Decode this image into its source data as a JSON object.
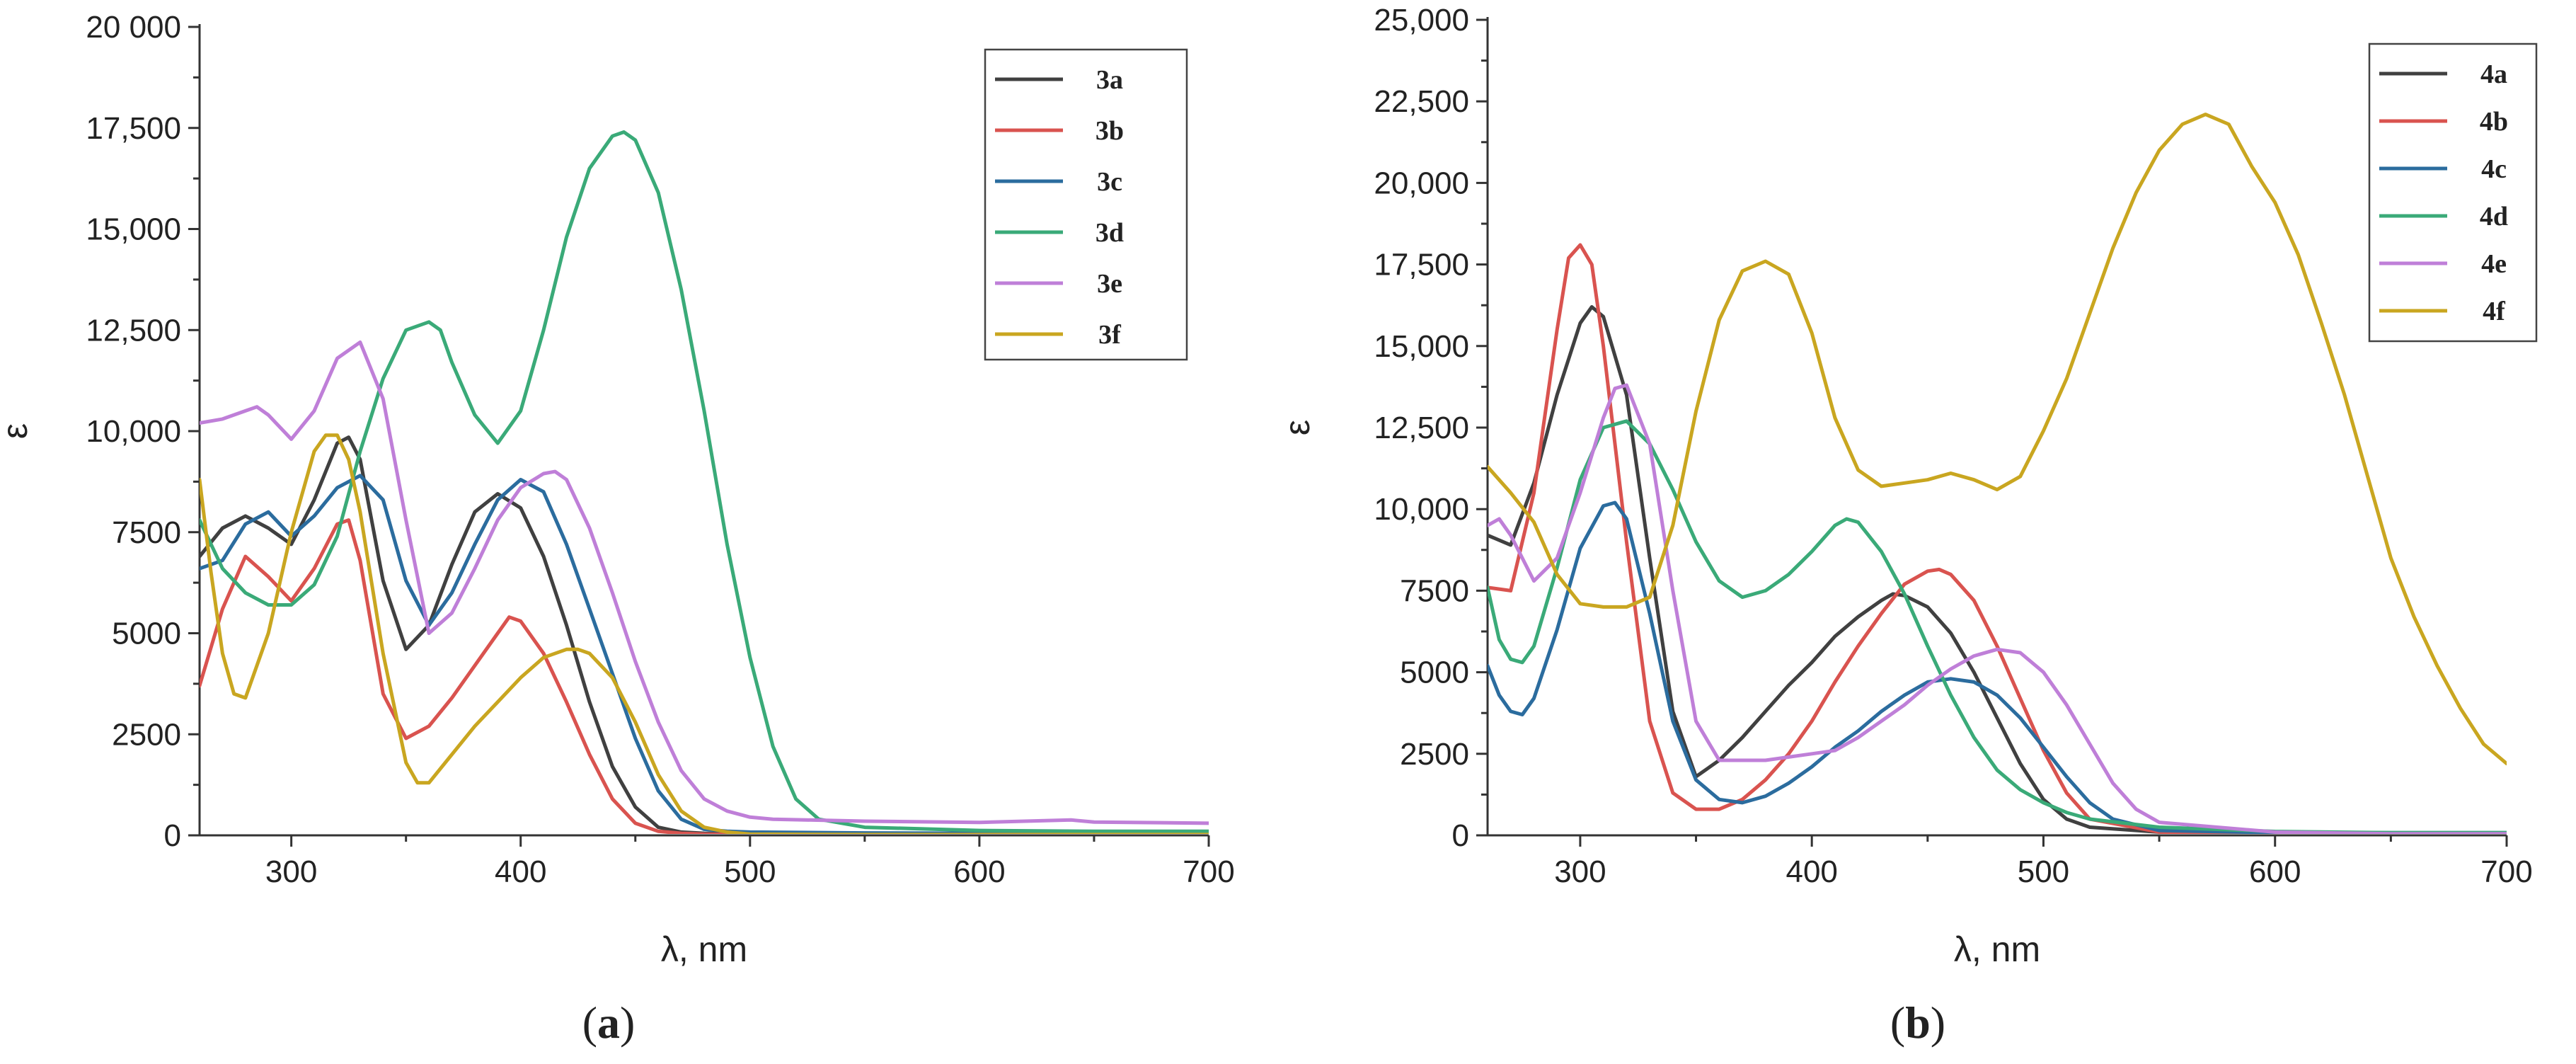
{
  "chart_data": [
    {
      "type": "line",
      "panel_label": "a",
      "xlabel": "λ, nm",
      "ylabel": "ε",
      "xlim": [
        260,
        700
      ],
      "ylim": [
        0,
        20000
      ],
      "xticks": [
        300,
        400,
        500,
        600,
        700
      ],
      "xtick_labels": [
        "300",
        "400",
        "500",
        "600",
        "700"
      ],
      "yticks": [
        0,
        2500,
        5000,
        7500,
        10000,
        12500,
        15000,
        17500,
        20000
      ],
      "ytick_labels": [
        "0",
        "2500",
        "5000",
        "7500",
        "10,000",
        "12,500",
        "15,000",
        "17,500",
        "20 000"
      ],
      "legend": "top-right",
      "grid": false,
      "series": [
        {
          "name": "3a",
          "color": "#404040",
          "x": [
            260,
            270,
            280,
            290,
            300,
            310,
            320,
            325,
            330,
            340,
            350,
            360,
            370,
            380,
            390,
            400,
            410,
            420,
            430,
            440,
            450,
            460,
            470,
            480,
            500,
            550,
            600,
            650,
            700
          ],
          "y": [
            6900,
            7600,
            7900,
            7600,
            7200,
            8300,
            9700,
            9850,
            9300,
            6300,
            4600,
            5200,
            6700,
            8000,
            8450,
            8100,
            6900,
            5200,
            3300,
            1700,
            700,
            200,
            80,
            50,
            30,
            30,
            30,
            30,
            30
          ]
        },
        {
          "name": "3b",
          "color": "#d9534f",
          "x": [
            260,
            270,
            280,
            290,
            300,
            310,
            320,
            325,
            330,
            340,
            350,
            360,
            370,
            380,
            390,
            395,
            400,
            410,
            420,
            430,
            440,
            450,
            460,
            470,
            480,
            500,
            550,
            600,
            650,
            700
          ],
          "y": [
            3700,
            5600,
            6900,
            6400,
            5800,
            6600,
            7700,
            7800,
            6800,
            3500,
            2400,
            2700,
            3400,
            4200,
            5000,
            5400,
            5300,
            4500,
            3300,
            2000,
            900,
            300,
            100,
            50,
            30,
            20,
            20,
            20,
            20,
            20
          ]
        },
        {
          "name": "3c",
          "color": "#2b6c9e",
          "x": [
            260,
            270,
            280,
            290,
            300,
            310,
            320,
            330,
            340,
            350,
            360,
            370,
            380,
            390,
            400,
            410,
            420,
            430,
            440,
            450,
            460,
            470,
            480,
            490,
            500,
            550,
            600,
            650,
            700
          ],
          "y": [
            6600,
            6800,
            7700,
            8000,
            7400,
            7900,
            8600,
            8900,
            8300,
            6300,
            5200,
            6000,
            7200,
            8300,
            8800,
            8500,
            7200,
            5600,
            4000,
            2400,
            1100,
            400,
            150,
            100,
            80,
            60,
            50,
            50,
            60
          ]
        },
        {
          "name": "3d",
          "color": "#3aaa78",
          "x": [
            260,
            270,
            280,
            290,
            300,
            310,
            320,
            330,
            340,
            350,
            360,
            365,
            370,
            380,
            390,
            400,
            410,
            420,
            430,
            440,
            445,
            450,
            460,
            470,
            480,
            490,
            500,
            510,
            520,
            530,
            550,
            600,
            650,
            700
          ],
          "y": [
            7800,
            6600,
            6000,
            5700,
            5700,
            6200,
            7400,
            9500,
            11300,
            12500,
            12700,
            12500,
            11700,
            10400,
            9700,
            10500,
            12500,
            14800,
            16500,
            17300,
            17400,
            17200,
            15900,
            13500,
            10500,
            7200,
            4400,
            2200,
            900,
            400,
            200,
            120,
            100,
            100
          ]
        },
        {
          "name": "3e",
          "color": "#bf7fd8",
          "x": [
            260,
            270,
            280,
            285,
            290,
            300,
            310,
            320,
            330,
            340,
            350,
            360,
            370,
            380,
            390,
            400,
            410,
            415,
            420,
            430,
            440,
            450,
            460,
            470,
            480,
            490,
            500,
            510,
            550,
            600,
            640,
            650,
            700
          ],
          "y": [
            10200,
            10300,
            10500,
            10600,
            10400,
            9800,
            10500,
            11800,
            12200,
            10800,
            7800,
            5000,
            5500,
            6600,
            7800,
            8600,
            8950,
            9000,
            8800,
            7600,
            6000,
            4300,
            2800,
            1600,
            900,
            600,
            450,
            400,
            350,
            320,
            380,
            330,
            300
          ]
        },
        {
          "name": "3f",
          "color": "#c9a620",
          "x": [
            260,
            265,
            270,
            275,
            280,
            290,
            300,
            310,
            315,
            320,
            325,
            330,
            340,
            350,
            355,
            360,
            370,
            380,
            390,
            400,
            410,
            420,
            425,
            430,
            440,
            450,
            460,
            470,
            480,
            490,
            500,
            550,
            600,
            650,
            700
          ],
          "y": [
            8800,
            6500,
            4500,
            3500,
            3400,
            5000,
            7500,
            9500,
            9900,
            9900,
            9300,
            8000,
            4500,
            1800,
            1300,
            1300,
            2000,
            2700,
            3300,
            3900,
            4400,
            4600,
            4600,
            4500,
            3900,
            2800,
            1500,
            600,
            200,
            80,
            30,
            20,
            20,
            20,
            20
          ]
        }
      ]
    },
    {
      "type": "line",
      "panel_label": "b",
      "xlabel": "λ, nm",
      "ylabel": "ε",
      "xlim": [
        260,
        700
      ],
      "ylim": [
        0,
        25000
      ],
      "xticks": [
        300,
        400,
        500,
        600,
        700
      ],
      "xtick_labels": [
        "300",
        "400",
        "500",
        "600",
        "700"
      ],
      "yticks": [
        0,
        2500,
        5000,
        7500,
        10000,
        12500,
        15000,
        17500,
        20000,
        22500,
        25000
      ],
      "ytick_labels": [
        "0",
        "2500",
        "5000",
        "7500",
        "10,000",
        "12,500",
        "15,000",
        "17,500",
        "20,000",
        "22,500",
        "25,000"
      ],
      "legend": "top-right",
      "grid": false,
      "series": [
        {
          "name": "4a",
          "color": "#404040",
          "x": [
            260,
            270,
            280,
            290,
            300,
            305,
            310,
            320,
            330,
            340,
            350,
            360,
            370,
            380,
            390,
            400,
            410,
            420,
            430,
            435,
            440,
            450,
            460,
            470,
            480,
            490,
            500,
            510,
            520,
            550,
            600,
            650,
            700
          ],
          "y": [
            9200,
            8900,
            10800,
            13500,
            15700,
            16200,
            15900,
            13500,
            8500,
            3800,
            1800,
            2300,
            3000,
            3800,
            4600,
            5300,
            6100,
            6700,
            7200,
            7400,
            7350,
            7000,
            6200,
            5000,
            3600,
            2200,
            1100,
            500,
            250,
            100,
            50,
            40,
            40
          ]
        },
        {
          "name": "4b",
          "color": "#d9534f",
          "x": [
            260,
            270,
            280,
            290,
            295,
            300,
            305,
            310,
            320,
            330,
            340,
            350,
            360,
            370,
            380,
            390,
            400,
            410,
            420,
            430,
            440,
            450,
            455,
            460,
            470,
            480,
            490,
            500,
            510,
            520,
            550,
            600,
            650,
            700
          ],
          "y": [
            7600,
            7500,
            10500,
            15500,
            17700,
            18100,
            17500,
            15000,
            9000,
            3500,
            1300,
            800,
            800,
            1100,
            1700,
            2500,
            3500,
            4700,
            5800,
            6800,
            7700,
            8100,
            8150,
            8000,
            7200,
            5800,
            4200,
            2600,
            1300,
            500,
            100,
            50,
            40,
            40
          ]
        },
        {
          "name": "4c",
          "color": "#2b6c9e",
          "x": [
            260,
            265,
            270,
            275,
            280,
            290,
            300,
            310,
            315,
            320,
            330,
            340,
            350,
            360,
            370,
            380,
            390,
            400,
            410,
            420,
            430,
            440,
            450,
            460,
            470,
            480,
            490,
            500,
            510,
            520,
            530,
            550,
            600,
            650,
            700
          ],
          "y": [
            5200,
            4300,
            3800,
            3700,
            4200,
            6300,
            8800,
            10100,
            10200,
            9700,
            6800,
            3500,
            1700,
            1100,
            1000,
            1200,
            1600,
            2100,
            2700,
            3200,
            3800,
            4300,
            4700,
            4800,
            4700,
            4300,
            3600,
            2700,
            1800,
            1000,
            500,
            150,
            80,
            80,
            80
          ]
        },
        {
          "name": "4d",
          "color": "#3aaa78",
          "x": [
            260,
            265,
            270,
            275,
            280,
            290,
            300,
            310,
            320,
            330,
            340,
            350,
            360,
            370,
            380,
            390,
            400,
            410,
            415,
            420,
            430,
            440,
            450,
            460,
            470,
            480,
            490,
            500,
            510,
            520,
            550,
            600,
            650,
            700
          ],
          "y": [
            7600,
            6000,
            5400,
            5300,
            5800,
            8200,
            10900,
            12500,
            12700,
            12000,
            10600,
            9000,
            7800,
            7300,
            7500,
            8000,
            8700,
            9500,
            9700,
            9600,
            8700,
            7400,
            5800,
            4300,
            3000,
            2000,
            1400,
            1000,
            700,
            500,
            250,
            120,
            80,
            80
          ]
        },
        {
          "name": "4e",
          "color": "#bf7fd8",
          "x": [
            260,
            265,
            270,
            280,
            290,
            300,
            310,
            315,
            320,
            330,
            340,
            350,
            360,
            370,
            380,
            390,
            400,
            410,
            420,
            430,
            440,
            450,
            460,
            470,
            480,
            490,
            500,
            510,
            520,
            530,
            540,
            550,
            600,
            650,
            700
          ],
          "y": [
            9500,
            9700,
            9200,
            7800,
            8500,
            10500,
            12800,
            13700,
            13800,
            12000,
            7500,
            3500,
            2300,
            2300,
            2300,
            2400,
            2500,
            2600,
            3000,
            3500,
            4000,
            4600,
            5100,
            5500,
            5700,
            5600,
            5000,
            4000,
            2800,
            1600,
            800,
            400,
            100,
            50,
            50
          ]
        },
        {
          "name": "4f",
          "color": "#c9a620",
          "x": [
            260,
            270,
            280,
            290,
            300,
            310,
            320,
            330,
            340,
            350,
            360,
            370,
            380,
            390,
            400,
            410,
            420,
            430,
            440,
            450,
            460,
            470,
            480,
            490,
            500,
            510,
            520,
            530,
            540,
            550,
            560,
            570,
            580,
            590,
            600,
            610,
            620,
            630,
            640,
            650,
            660,
            670,
            680,
            690,
            700
          ],
          "y": [
            11300,
            10500,
            9600,
            8000,
            7100,
            7000,
            7000,
            7300,
            9500,
            13000,
            15800,
            17300,
            17600,
            17200,
            15400,
            12800,
            11200,
            10700,
            10800,
            10900,
            11100,
            10900,
            10600,
            11000,
            12400,
            14000,
            16000,
            18000,
            19700,
            21000,
            21800,
            22100,
            21800,
            20500,
            19400,
            17800,
            15700,
            13500,
            11000,
            8500,
            6700,
            5200,
            3900,
            2800,
            2200
          ]
        }
      ]
    }
  ],
  "captions": {
    "a": {
      "open": "(",
      "letter": "a",
      "close": ")"
    },
    "b": {
      "open": "(",
      "letter": "b",
      "close": ")"
    }
  }
}
